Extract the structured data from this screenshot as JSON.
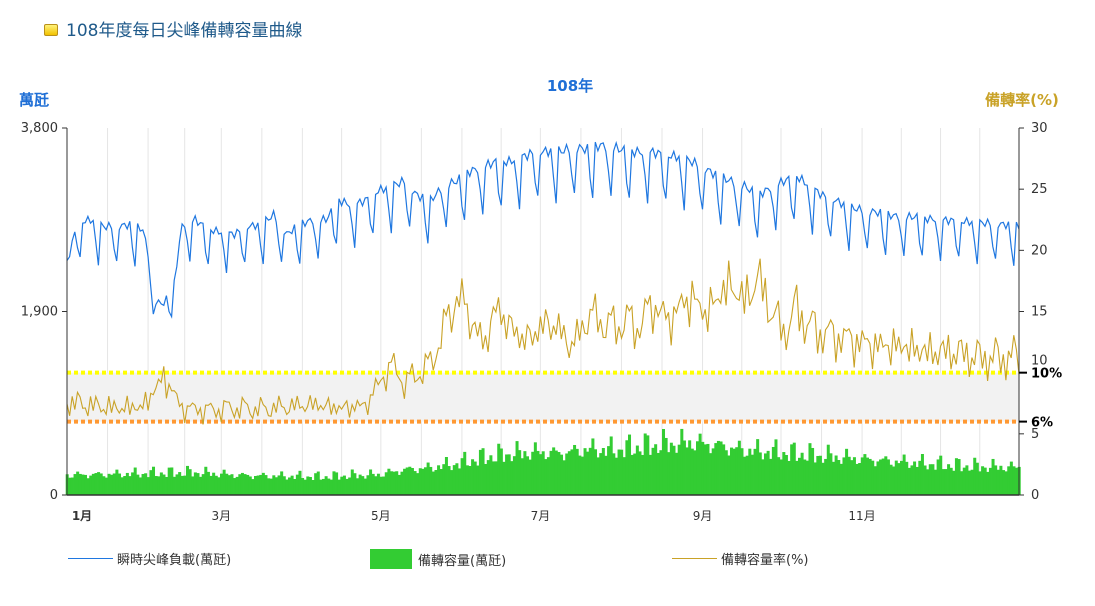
{
  "header": {
    "title": "108年度每日尖峰備轉容量曲線"
  },
  "colors": {
    "load": "#1f77e0",
    "reserve": "#33cc33",
    "rate": "#c9a227",
    "line10": "#ffff00",
    "line6": "#ff9933",
    "axisLeft": "#1f6fd6",
    "axisRight": "#c9a227"
  },
  "chart_data": {
    "type": "line",
    "title": "108年",
    "ylabel_left": "萬瓩",
    "ylabel_right": "備轉率(%)",
    "y_left_ticks": [
      "0",
      "1,900",
      "3,800"
    ],
    "y_left_range": [
      0,
      3800
    ],
    "y_right_ticks": [
      "0",
      "5",
      "10",
      "15",
      "20",
      "25",
      "30"
    ],
    "y_right_range": [
      0,
      30
    ],
    "x_ticks": [
      "1月",
      "3月",
      "5月",
      "7月",
      "9月",
      "11月"
    ],
    "x_range_days": [
      1,
      365
    ],
    "grid": true,
    "reference_lines": [
      {
        "label": "10%",
        "value": 10
      },
      {
        "label": "6%",
        "value": 6
      }
    ],
    "series": [
      {
        "name": "瞬時尖峰負載(萬瓩)",
        "axis": "left",
        "style": "line",
        "days": [
          1,
          5,
          10,
          15,
          20,
          25,
          30,
          32,
          35,
          38,
          42,
          45,
          50,
          55,
          60,
          65,
          70,
          75,
          80,
          85,
          90,
          95,
          100,
          105,
          110,
          115,
          120,
          125,
          130,
          135,
          140,
          145,
          150,
          155,
          160,
          165,
          170,
          175,
          180,
          185,
          190,
          195,
          200,
          205,
          210,
          215,
          220,
          225,
          230,
          235,
          240,
          245,
          250,
          255,
          260,
          265,
          270,
          275,
          280,
          285,
          290,
          295,
          300,
          305,
          310,
          315,
          320,
          325,
          330,
          335,
          340,
          345,
          350,
          355,
          360,
          365
        ],
        "values": [
          2400,
          2820,
          2850,
          2780,
          2780,
          2800,
          2750,
          2500,
          2000,
          1980,
          2200,
          2800,
          2850,
          2750,
          2720,
          2700,
          2780,
          2800,
          2900,
          2700,
          2800,
          2850,
          2850,
          3050,
          3000,
          3050,
          3150,
          3200,
          3250,
          3100,
          3050,
          3200,
          3250,
          3350,
          3400,
          3450,
          3450,
          3500,
          3550,
          3560,
          3560,
          3600,
          3580,
          3620,
          3600,
          3560,
          3550,
          3550,
          3520,
          3500,
          3450,
          3380,
          3300,
          3250,
          3200,
          3100,
          3180,
          3250,
          3300,
          3200,
          3100,
          3050,
          2980,
          2950,
          2930,
          2900,
          2880,
          2880,
          2860,
          2850,
          2840,
          2830,
          2820,
          2810,
          2800,
          2780
        ]
      },
      {
        "name": "備轉容量(萬瓩)",
        "axis": "left",
        "style": "bar",
        "days": [
          1,
          10,
          20,
          30,
          40,
          50,
          60,
          70,
          80,
          90,
          100,
          110,
          120,
          130,
          140,
          150,
          160,
          170,
          180,
          190,
          200,
          210,
          220,
          230,
          240,
          250,
          260,
          270,
          280,
          290,
          300,
          310,
          320,
          330,
          340,
          350,
          365
        ],
        "values": [
          205,
          210,
          215,
          220,
          225,
          230,
          215,
          200,
          195,
          190,
          185,
          200,
          210,
          260,
          280,
          320,
          380,
          420,
          440,
          430,
          470,
          460,
          490,
          520,
          540,
          510,
          460,
          440,
          420,
          400,
          380,
          360,
          340,
          320,
          300,
          290,
          285
        ]
      },
      {
        "name": "備轉容量率(%)",
        "axis": "right",
        "style": "line",
        "days": [
          1,
          10,
          20,
          30,
          38,
          45,
          55,
          65,
          75,
          85,
          95,
          105,
          115,
          125,
          130,
          140,
          150,
          155,
          160,
          165,
          175,
          180,
          185,
          195,
          200,
          210,
          215,
          220,
          225,
          230,
          235,
          240,
          245,
          250,
          255,
          260,
          265,
          270,
          275,
          280,
          285,
          290,
          300,
          310,
          320,
          330,
          340,
          350,
          360,
          365
        ],
        "values": [
          7.5,
          7.2,
          7.0,
          7.1,
          9.5,
          7.0,
          6.8,
          7.0,
          6.9,
          7.1,
          7.3,
          7.0,
          7.2,
          10.5,
          9.0,
          10.5,
          16.0,
          14.5,
          12.0,
          15.0,
          12.5,
          13.0,
          14.0,
          12.0,
          14.5,
          13.5,
          14.0,
          13.5,
          15.5,
          14.0,
          15.0,
          16.0,
          14.5,
          16.0,
          17.0,
          15.5,
          17.5,
          15.0,
          13.0,
          15.0,
          13.5,
          13.0,
          12.5,
          12.0,
          12.0,
          11.5,
          11.5,
          11.0,
          11.0,
          11.2
        ]
      }
    ]
  }
}
